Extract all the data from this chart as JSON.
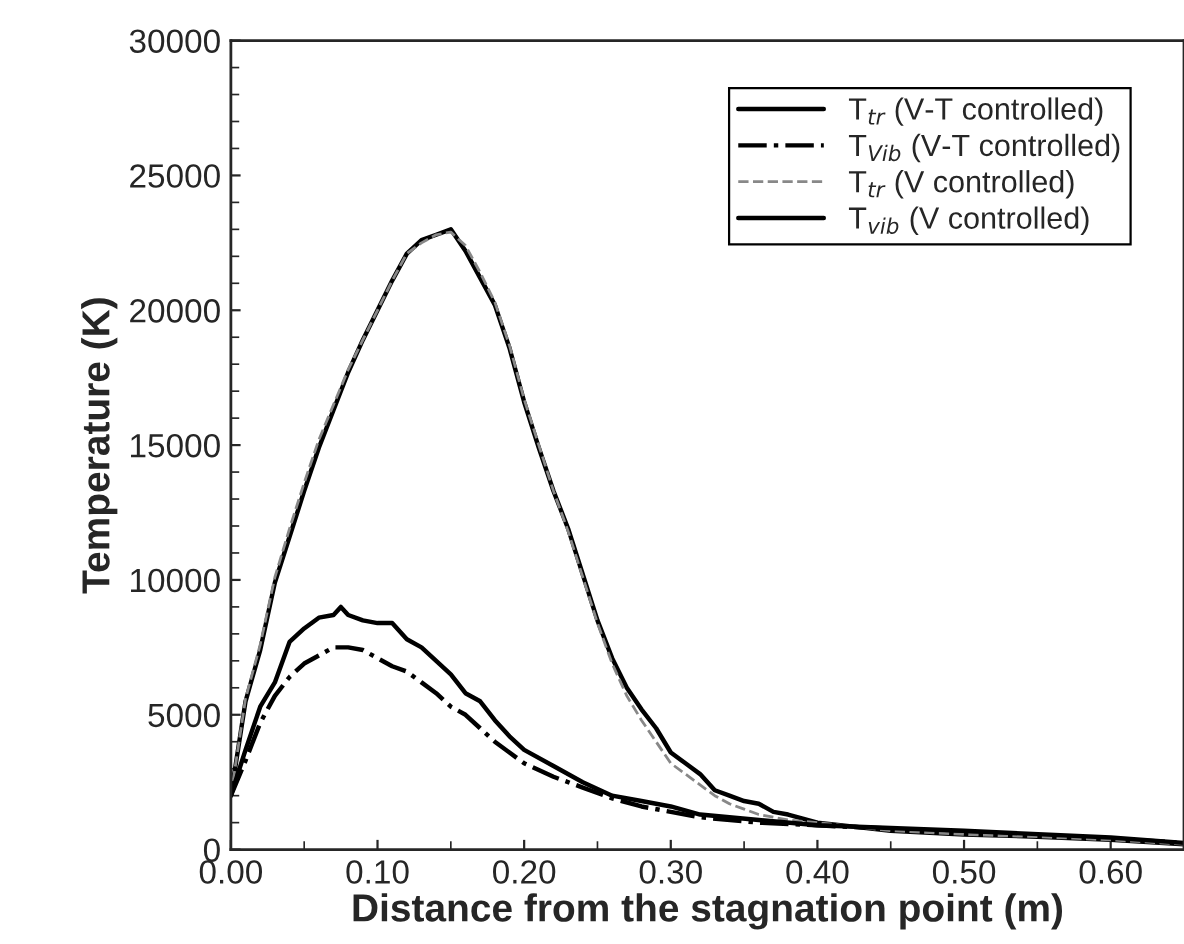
{
  "chart_data": {
    "type": "line",
    "xlabel": "Distance from the stagnation point (m)",
    "ylabel": "Temperature (K)",
    "xlim": [
      0,
      0.65
    ],
    "ylim": [
      0,
      30000
    ],
    "xticks": [
      {
        "value": 0,
        "label": "0.00"
      },
      {
        "value": 0.1,
        "label": "0.10"
      },
      {
        "value": 0.2,
        "label": "0.20"
      },
      {
        "value": 0.3,
        "label": "0.30"
      },
      {
        "value": 0.4,
        "label": "0.40"
      },
      {
        "value": 0.5,
        "label": "0.50"
      },
      {
        "value": 0.6,
        "label": "0.60"
      }
    ],
    "yticks": [
      0,
      5000,
      10000,
      15000,
      20000,
      25000,
      30000
    ],
    "grid": false,
    "legend": "top right",
    "series": [
      {
        "name": "T$_{tr}$ (V-T controlled)",
        "color": "#000000",
        "line_style": "solid",
        "x": [
          0,
          0.01,
          0.02,
          0.03,
          0.04,
          0.05,
          0.06,
          0.07,
          0.08,
          0.09,
          0.1,
          0.11,
          0.12,
          0.13,
          0.14,
          0.15,
          0.16,
          0.17,
          0.18,
          0.19,
          0.2,
          0.21,
          0.22,
          0.23,
          0.24,
          0.25,
          0.26,
          0.27,
          0.28,
          0.29,
          0.3,
          0.31,
          0.32,
          0.33,
          0.34,
          0.35,
          0.36,
          0.37,
          0.38,
          0.4,
          0.45,
          0.5,
          0.55,
          0.6,
          0.65
        ],
        "values": [
          2000,
          5500,
          7400,
          9900,
          11600,
          13300,
          14900,
          16300,
          17700,
          18900,
          20000,
          21100,
          22100,
          22600,
          22800,
          23000,
          22200,
          21200,
          20200,
          18600,
          16600,
          14900,
          13300,
          11900,
          10200,
          8500,
          7100,
          6000,
          5200,
          4500,
          3600,
          3200,
          2800,
          2200,
          2000,
          1800,
          1700,
          1400,
          1300,
          1000,
          700,
          560,
          480,
          360,
          200
        ]
      },
      {
        "name": "T$_{Vib}$ (V-T controlled)",
        "color": "#000000",
        "line_style": "dashdot",
        "x": [
          0,
          0.01,
          0.02,
          0.03,
          0.04,
          0.05,
          0.06,
          0.07,
          0.08,
          0.09,
          0.1,
          0.11,
          0.12,
          0.13,
          0.14,
          0.15,
          0.16,
          0.17,
          0.18,
          0.19,
          0.2,
          0.22,
          0.24,
          0.26,
          0.28,
          0.3,
          0.32,
          0.36,
          0.4,
          0.5,
          0.6,
          0.65
        ],
        "values": [
          2000,
          3300,
          4700,
          5700,
          6400,
          6900,
          7200,
          7500,
          7500,
          7400,
          7100,
          6800,
          6600,
          6200,
          5800,
          5300,
          5000,
          4500,
          4000,
          3600,
          3200,
          2700,
          2300,
          1900,
          1600,
          1400,
          1200,
          1000,
          900,
          650,
          400,
          250
        ]
      },
      {
        "name": "T$_{tr}$ (V controlled)",
        "color": "#888888",
        "line_style": "dashed",
        "x": [
          0,
          0.01,
          0.02,
          0.03,
          0.04,
          0.05,
          0.06,
          0.07,
          0.08,
          0.09,
          0.1,
          0.11,
          0.12,
          0.13,
          0.14,
          0.15,
          0.16,
          0.17,
          0.18,
          0.19,
          0.2,
          0.21,
          0.22,
          0.23,
          0.24,
          0.25,
          0.26,
          0.27,
          0.28,
          0.29,
          0.3,
          0.31,
          0.32,
          0.33,
          0.34,
          0.35,
          0.36,
          0.38,
          0.4,
          0.45,
          0.5,
          0.55,
          0.6,
          0.65
        ],
        "values": [
          2000,
          5600,
          7600,
          10100,
          11900,
          13600,
          15200,
          16500,
          17800,
          18900,
          20000,
          21100,
          22100,
          22500,
          22800,
          22900,
          22400,
          21400,
          20300,
          18700,
          16700,
          15000,
          13300,
          11800,
          10100,
          8400,
          6900,
          5700,
          4800,
          4000,
          3200,
          2800,
          2400,
          2000,
          1700,
          1500,
          1300,
          1100,
          1000,
          700,
          560,
          480,
          360,
          200
        ]
      },
      {
        "name": "T$_{vib}$ (V controlled)",
        "color": "#000000",
        "line_style": "solid",
        "x": [
          0,
          0.01,
          0.02,
          0.03,
          0.04,
          0.05,
          0.06,
          0.07,
          0.075,
          0.08,
          0.09,
          0.1,
          0.11,
          0.12,
          0.13,
          0.14,
          0.15,
          0.16,
          0.17,
          0.18,
          0.19,
          0.2,
          0.22,
          0.24,
          0.26,
          0.28,
          0.3,
          0.32,
          0.36,
          0.4,
          0.5,
          0.6,
          0.65
        ],
        "values": [
          2000,
          3700,
          5300,
          6200,
          7700,
          8200,
          8600,
          8700,
          9000,
          8700,
          8500,
          8400,
          8400,
          7800,
          7500,
          7000,
          6500,
          5800,
          5500,
          4800,
          4200,
          3700,
          3100,
          2500,
          2000,
          1800,
          1600,
          1300,
          1100,
          900,
          700,
          450,
          250
        ]
      }
    ]
  }
}
